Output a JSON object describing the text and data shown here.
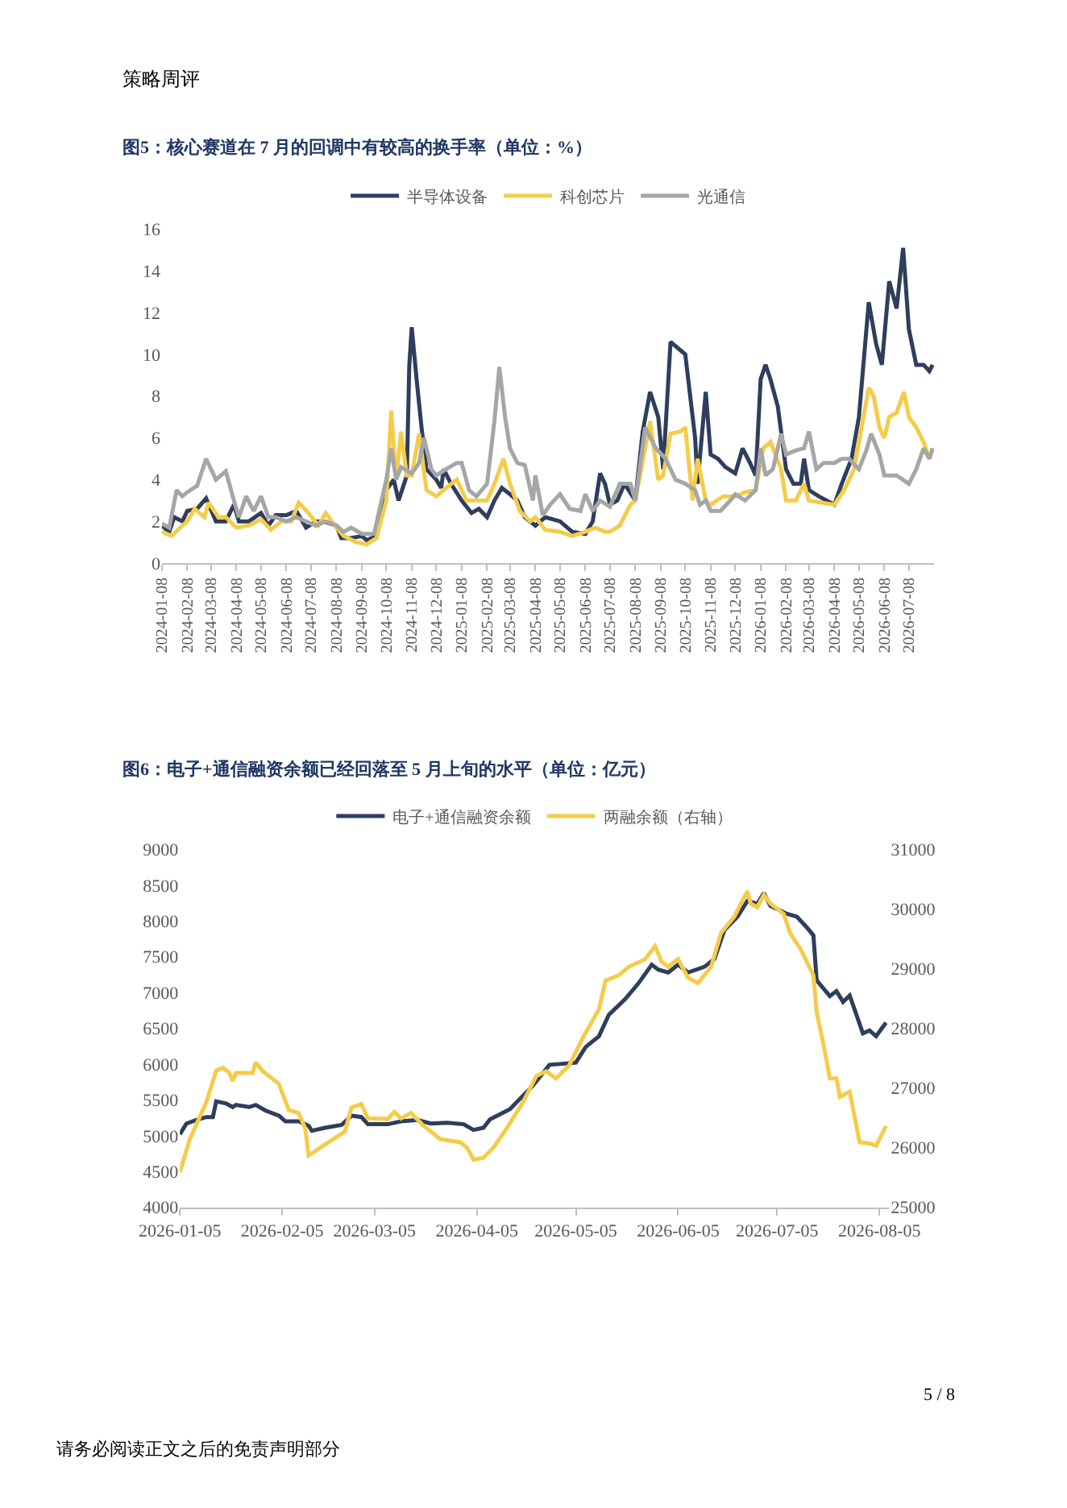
{
  "chart_data": [
    {
      "type": "line",
      "title": "图5：核心赛道在 7 月的回调中有较高的换手率（单位：%）",
      "annotations": [
        "策略周评"
      ],
      "xlim": [
        "2024-01-08",
        "2026-08-08"
      ],
      "xticks": [
        "2024-01-08",
        "2024-02-08",
        "2024-03-08",
        "2024-04-08",
        "2024-05-08",
        "2024-06-08",
        "2024-07-08",
        "2024-08-08",
        "2024-09-08",
        "2024-10-08",
        "2024-11-08",
        "2024-12-08",
        "2025-01-08",
        "2025-02-08",
        "2025-03-08",
        "2025-04-08",
        "2025-05-08",
        "2025-06-08",
        "2025-07-08",
        "2025-08-08",
        "2025-09-08",
        "2025-10-08",
        "2025-11-08",
        "2025-12-08",
        "2026-01-08",
        "2026-02-08",
        "2026-03-08",
        "2026-04-08",
        "2026-05-08",
        "2026-06-08",
        "2026-07-08"
      ],
      "ylim": [
        0,
        16
      ],
      "yticks": [
        0,
        2,
        4,
        6,
        8,
        10,
        12,
        14,
        16
      ],
      "legend": "top",
      "series": [
        {
          "name": "半导体设备",
          "color": "#2e3e5c",
          "x": [
            "2024-01-08",
            "2024-01-17",
            "2024-01-23",
            "2024-02-02",
            "2024-02-08",
            "2024-02-20",
            "2024-03-02",
            "2024-03-14",
            "2024-03-26",
            "2024-04-05",
            "2024-04-11",
            "2024-04-23",
            "2024-05-08",
            "2024-05-17",
            "2024-05-26",
            "2024-06-08",
            "2024-06-20",
            "2024-07-02",
            "2024-07-14",
            "2024-07-23",
            "2024-08-08",
            "2024-08-14",
            "2024-08-26",
            "2024-09-08",
            "2024-09-14",
            "2024-09-26",
            "2024-10-08",
            "2024-10-17",
            "2024-10-23",
            "2024-11-02",
            "2024-11-05",
            "2024-11-08",
            "2024-11-14",
            "2024-11-20",
            "2024-11-26",
            "2024-12-08",
            "2024-12-14",
            "2024-12-17",
            "2024-12-26",
            "2025-01-08",
            "2025-01-20",
            "2025-01-29",
            "2025-02-08",
            "2025-02-17",
            "2025-02-26",
            "2025-03-08",
            "2025-03-17",
            "2025-03-26",
            "2025-04-08",
            "2025-04-20",
            "2025-05-08",
            "2025-05-23",
            "2025-06-08",
            "2025-06-17",
            "2025-06-26",
            "2025-07-02",
            "2025-07-08",
            "2025-07-17",
            "2025-07-26",
            "2025-08-08",
            "2025-08-17",
            "2025-08-26",
            "2025-09-05",
            "2025-09-11",
            "2025-09-20",
            "2025-10-02",
            "2025-10-08",
            "2025-10-20",
            "2025-10-23",
            "2025-11-02",
            "2025-11-08",
            "2025-11-17",
            "2025-11-26",
            "2025-12-08",
            "2025-12-17",
            "2025-12-26",
            "2026-01-02",
            "2026-01-08",
            "2026-01-14",
            "2026-01-20",
            "2026-01-29",
            "2026-02-08",
            "2026-02-17",
            "2026-02-26",
            "2026-03-02",
            "2026-03-08",
            "2026-03-20",
            "2026-04-08",
            "2026-04-17",
            "2026-04-29",
            "2026-05-08",
            "2026-05-20",
            "2026-05-29",
            "2026-06-05",
            "2026-06-14",
            "2026-06-23",
            "2026-07-01",
            "2026-07-08",
            "2026-07-17",
            "2026-07-26",
            "2026-08-02",
            "2026-08-06"
          ],
          "values": [
            1.8,
            1.5,
            2.2,
            2.0,
            2.5,
            2.6,
            3.1,
            2.0,
            2.0,
            2.8,
            2.0,
            2.0,
            2.4,
            1.8,
            2.3,
            2.3,
            2.5,
            1.7,
            2.0,
            2.0,
            1.8,
            1.2,
            1.2,
            1.3,
            1.1,
            1.3,
            3.5,
            4.0,
            3.0,
            4.2,
            9.4,
            11.3,
            8.8,
            6.5,
            4.5,
            4.0,
            3.6,
            4.5,
            3.8,
            3.0,
            2.4,
            2.6,
            2.2,
            3.0,
            3.6,
            3.3,
            3.0,
            2.2,
            1.8,
            2.2,
            2.0,
            1.5,
            1.4,
            2.0,
            4.3,
            3.8,
            2.8,
            3.0,
            3.8,
            3.0,
            6.3,
            8.2,
            7.0,
            4.5,
            10.6,
            10.2,
            10.0,
            6.0,
            3.8,
            8.2,
            5.2,
            5.0,
            4.6,
            4.3,
            5.5,
            4.8,
            4.2,
            8.8,
            9.5,
            8.8,
            7.5,
            4.5,
            3.8,
            3.8,
            5.0,
            3.5,
            3.2,
            2.8,
            3.8,
            5.0,
            7.0,
            12.5,
            10.5,
            9.5,
            13.5,
            12.2,
            15.1,
            11.2,
            9.5,
            9.5,
            9.2,
            9.5
          ]
        },
        {
          "name": "科创芯片",
          "color": "#f5cc4a",
          "x": [
            "2024-01-08",
            "2024-01-20",
            "2024-02-02",
            "2024-02-08",
            "2024-02-17",
            "2024-02-29",
            "2024-03-05",
            "2024-03-17",
            "2024-03-26",
            "2024-04-08",
            "2024-04-23",
            "2024-05-08",
            "2024-05-20",
            "2024-06-02",
            "2024-06-14",
            "2024-06-23",
            "2024-07-05",
            "2024-07-17",
            "2024-07-26",
            "2024-08-08",
            "2024-08-17",
            "2024-09-02",
            "2024-09-14",
            "2024-09-26",
            "2024-10-08",
            "2024-10-14",
            "2024-10-20",
            "2024-10-26",
            "2024-11-02",
            "2024-11-08",
            "2024-11-17",
            "2024-11-26",
            "2024-12-08",
            "2024-12-20",
            "2025-01-02",
            "2025-01-14",
            "2025-01-26",
            "2025-02-08",
            "2025-02-17",
            "2025-02-28",
            "2025-03-08",
            "2025-03-20",
            "2025-04-02",
            "2025-04-08",
            "2025-04-20",
            "2025-05-08",
            "2025-05-23",
            "2025-06-08",
            "2025-06-20",
            "2025-07-02",
            "2025-07-08",
            "2025-07-20",
            "2025-08-02",
            "2025-08-08",
            "2025-08-20",
            "2025-08-26",
            "2025-09-05",
            "2025-09-11",
            "2025-09-20",
            "2025-10-02",
            "2025-10-08",
            "2025-10-17",
            "2025-10-23",
            "2025-11-02",
            "2025-11-08",
            "2025-11-23",
            "2025-12-08",
            "2025-12-20",
            "2026-01-02",
            "2026-01-11",
            "2026-01-20",
            "2026-02-02",
            "2026-02-08",
            "2026-02-20",
            "2026-03-02",
            "2026-03-08",
            "2026-03-23",
            "2026-04-08",
            "2026-04-20",
            "2026-05-02",
            "2026-05-08",
            "2026-05-20",
            "2026-05-26",
            "2026-06-02",
            "2026-06-08",
            "2026-06-14",
            "2026-06-23",
            "2026-07-02",
            "2026-07-08",
            "2026-07-17",
            "2026-07-26",
            "2026-08-02",
            "2026-08-06"
          ],
          "values": [
            1.5,
            1.3,
            1.8,
            2.0,
            2.6,
            2.2,
            2.9,
            2.2,
            2.2,
            1.7,
            1.8,
            2.1,
            1.6,
            2.0,
            2.0,
            2.9,
            2.4,
            1.8,
            2.4,
            1.7,
            1.3,
            1.0,
            0.9,
            1.2,
            3.0,
            7.3,
            4.0,
            6.3,
            4.2,
            4.2,
            6.2,
            3.5,
            3.2,
            3.6,
            4.0,
            3.0,
            3.0,
            3.0,
            3.8,
            5.0,
            3.8,
            2.5,
            2.0,
            2.2,
            1.6,
            1.5,
            1.3,
            1.5,
            1.7,
            1.5,
            1.5,
            1.8,
            2.8,
            3.0,
            5.5,
            6.8,
            4.0,
            4.2,
            6.2,
            6.3,
            6.5,
            3.0,
            5.0,
            3.0,
            2.8,
            3.2,
            3.2,
            3.4,
            3.5,
            5.5,
            5.8,
            4.5,
            3.0,
            3.0,
            3.8,
            3.0,
            2.9,
            2.8,
            3.5,
            4.5,
            5.8,
            8.4,
            8.0,
            6.5,
            6.0,
            7.0,
            7.2,
            8.2,
            7.0,
            6.5,
            5.8,
            5.0,
            5.5
          ]
        },
        {
          "name": "光通信",
          "color": "#a6a6a6",
          "x": [
            "2024-01-08",
            "2024-01-17",
            "2024-01-26",
            "2024-02-02",
            "2024-02-08",
            "2024-02-20",
            "2024-03-02",
            "2024-03-14",
            "2024-03-26",
            "2024-04-05",
            "2024-04-11",
            "2024-04-20",
            "2024-04-29",
            "2024-05-08",
            "2024-05-17",
            "2024-05-26",
            "2024-06-08",
            "2024-06-20",
            "2024-07-02",
            "2024-07-14",
            "2024-07-26",
            "2024-08-08",
            "2024-08-17",
            "2024-08-26",
            "2024-09-08",
            "2024-09-23",
            "2024-10-08",
            "2024-10-14",
            "2024-10-20",
            "2024-10-26",
            "2024-11-08",
            "2024-11-17",
            "2024-11-23",
            "2024-12-02",
            "2024-12-08",
            "2024-12-20",
            "2025-01-02",
            "2025-01-08",
            "2025-01-17",
            "2025-01-26",
            "2025-02-08",
            "2025-02-17",
            "2025-02-23",
            "2025-03-02",
            "2025-03-08",
            "2025-03-17",
            "2025-03-26",
            "2025-04-05",
            "2025-04-08",
            "2025-04-17",
            "2025-04-26",
            "2025-05-08",
            "2025-05-20",
            "2025-06-02",
            "2025-06-08",
            "2025-06-17",
            "2025-06-26",
            "2025-07-08",
            "2025-07-20",
            "2025-08-02",
            "2025-08-08",
            "2025-08-20",
            "2025-09-02",
            "2025-09-14",
            "2025-09-26",
            "2025-10-08",
            "2025-10-20",
            "2025-10-26",
            "2025-11-02",
            "2025-11-08",
            "2025-11-20",
            "2025-12-02",
            "2025-12-08",
            "2025-12-20",
            "2026-01-02",
            "2026-01-08",
            "2026-01-14",
            "2026-01-23",
            "2026-02-02",
            "2026-02-08",
            "2026-02-20",
            "2026-03-02",
            "2026-03-08",
            "2026-03-17",
            "2026-03-26",
            "2026-04-08",
            "2026-04-17",
            "2026-04-26",
            "2026-05-08",
            "2026-05-17",
            "2026-05-23",
            "2026-06-02",
            "2026-06-08",
            "2026-06-23",
            "2026-07-08",
            "2026-07-17",
            "2026-07-26",
            "2026-08-02",
            "2026-08-06"
          ],
          "values": [
            1.9,
            1.7,
            3.5,
            3.2,
            3.4,
            3.7,
            5.0,
            4.0,
            4.4,
            3.0,
            2.2,
            3.2,
            2.5,
            3.2,
            2.2,
            2.2,
            2.0,
            2.2,
            2.0,
            1.8,
            2.0,
            1.8,
            1.5,
            1.7,
            1.4,
            1.4,
            4.0,
            5.5,
            4.0,
            4.6,
            4.3,
            4.8,
            6.0,
            4.5,
            4.2,
            4.5,
            4.8,
            4.8,
            3.5,
            3.2,
            3.8,
            6.8,
            9.4,
            7.0,
            5.5,
            4.8,
            4.7,
            3.0,
            4.2,
            2.3,
            2.8,
            3.3,
            2.6,
            2.5,
            3.3,
            2.5,
            3.0,
            2.7,
            3.8,
            3.8,
            3.0,
            6.5,
            5.5,
            5.0,
            4.0,
            3.8,
            3.5,
            2.8,
            3.0,
            2.5,
            2.5,
            3.0,
            3.3,
            3.0,
            3.5,
            5.5,
            4.2,
            4.5,
            6.2,
            5.2,
            5.4,
            5.5,
            6.3,
            4.5,
            4.8,
            4.8,
            5.0,
            5.0,
            4.5,
            5.4,
            6.2,
            5.2,
            4.2,
            4.2,
            3.8,
            4.5,
            5.5,
            5.0,
            5.5
          ]
        }
      ]
    },
    {
      "type": "line",
      "title": "图6：电子+通信融资余额已经回落至 5 月上旬的水平（单位：亿元）",
      "annotations": [
        "请务必阅读正文之后的免责声明部分",
        "5 / 8"
      ],
      "xlim": [
        "2026-01-05",
        "2026-08-08"
      ],
      "xticks": [
        "2026-01-05",
        "2026-02-05",
        "2026-03-05",
        "2026-04-05",
        "2026-05-05",
        "2026-06-05",
        "2026-07-05",
        "2026-08-05"
      ],
      "ylim": [
        4000,
        9000
      ],
      "yticks": [
        4000,
        4500,
        5000,
        5500,
        6000,
        6500,
        7000,
        7500,
        8000,
        8500,
        9000
      ],
      "y2lim": [
        25000,
        31000
      ],
      "y2ticks": [
        25000,
        26000,
        27000,
        28000,
        29000,
        30000,
        31000
      ],
      "legend": "top",
      "series": [
        {
          "name": "电子+通信融资余额",
          "color": "#2e3e5c",
          "x": [
            "2026-01-05",
            "2026-01-07",
            "2026-01-10",
            "2026-01-13",
            "2026-01-15",
            "2026-01-16",
            "2026-01-19",
            "2026-01-21",
            "2026-01-22",
            "2026-01-26",
            "2026-01-28",
            "2026-01-31",
            "2026-02-04",
            "2026-02-06",
            "2026-02-10",
            "2026-02-13",
            "2026-02-14",
            "2026-02-18",
            "2026-02-23",
            "2026-02-26",
            "2026-03-01",
            "2026-03-03",
            "2026-03-09",
            "2026-03-13",
            "2026-03-18",
            "2026-03-22",
            "2026-03-27",
            "2026-04-01",
            "2026-04-04",
            "2026-04-07",
            "2026-04-09",
            "2026-04-15",
            "2026-04-22",
            "2026-04-27",
            "2026-05-05",
            "2026-05-08",
            "2026-05-12",
            "2026-05-15",
            "2026-05-20",
            "2026-05-24",
            "2026-05-28",
            "2026-05-30",
            "2026-06-02",
            "2026-06-05",
            "2026-06-08",
            "2026-06-13",
            "2026-06-16",
            "2026-06-19",
            "2026-06-23",
            "2026-06-26",
            "2026-06-29",
            "2026-07-01",
            "2026-07-03",
            "2026-07-08",
            "2026-07-11",
            "2026-07-14",
            "2026-07-16",
            "2026-07-17",
            "2026-07-21",
            "2026-07-23",
            "2026-07-25",
            "2026-07-27",
            "2026-07-31",
            "2026-08-02",
            "2026-08-04",
            "2026-08-07"
          ],
          "values": [
            5020,
            5170,
            5220,
            5260,
            5260,
            5480,
            5450,
            5400,
            5430,
            5400,
            5430,
            5350,
            5280,
            5200,
            5200,
            5140,
            5070,
            5110,
            5150,
            5280,
            5260,
            5160,
            5160,
            5200,
            5220,
            5170,
            5180,
            5160,
            5080,
            5110,
            5230,
            5370,
            5700,
            5990,
            6020,
            6240,
            6390,
            6690,
            6910,
            7130,
            7390,
            7320,
            7280,
            7390,
            7280,
            7360,
            7470,
            7870,
            8060,
            8280,
            8240,
            8390,
            8210,
            8100,
            8060,
            7910,
            7800,
            7170,
            6950,
            7020,
            6870,
            6960,
            6430,
            6470,
            6390,
            6580
          ]
        },
        {
          "name": "两融余额（右轴）",
          "color": "#f5cc4a",
          "axis": "y2",
          "x": [
            "2026-01-05",
            "2026-01-08",
            "2026-01-13",
            "2026-01-16",
            "2026-01-18",
            "2026-01-20",
            "2026-01-21",
            "2026-01-22",
            "2026-01-27",
            "2026-01-28",
            "2026-01-30",
            "2026-02-04",
            "2026-02-07",
            "2026-02-10",
            "2026-02-12",
            "2026-02-13",
            "2026-02-24",
            "2026-02-26",
            "2026-03-01",
            "2026-03-03",
            "2026-03-09",
            "2026-03-11",
            "2026-03-13",
            "2026-03-16",
            "2026-03-20",
            "2026-03-25",
            "2026-03-31",
            "2026-04-02",
            "2026-04-04",
            "2026-04-07",
            "2026-04-10",
            "2026-04-14",
            "2026-04-19",
            "2026-04-23",
            "2026-04-26",
            "2026-04-29",
            "2026-05-03",
            "2026-05-07",
            "2026-05-12",
            "2026-05-14",
            "2026-05-18",
            "2026-05-21",
            "2026-05-26",
            "2026-05-29",
            "2026-05-31",
            "2026-06-02",
            "2026-06-05",
            "2026-06-08",
            "2026-06-11",
            "2026-06-15",
            "2026-06-18",
            "2026-06-22",
            "2026-06-24",
            "2026-06-26",
            "2026-06-27",
            "2026-06-29",
            "2026-07-01",
            "2026-07-03",
            "2026-07-07",
            "2026-07-09",
            "2026-07-12",
            "2026-07-16",
            "2026-07-17",
            "2026-07-19",
            "2026-07-21",
            "2026-07-23",
            "2026-07-24",
            "2026-07-27",
            "2026-07-30",
            "2026-08-02",
            "2026-08-04",
            "2026-08-07"
          ],
          "values": [
            25590,
            26140,
            26760,
            27290,
            27340,
            27250,
            27120,
            27250,
            27250,
            27430,
            27290,
            27070,
            26630,
            26580,
            26320,
            25870,
            26270,
            26670,
            26730,
            26490,
            26480,
            26600,
            26490,
            26580,
            26360,
            26140,
            26090,
            26000,
            25800,
            25830,
            26000,
            26320,
            26760,
            27200,
            27280,
            27160,
            27380,
            27830,
            28320,
            28800,
            28890,
            29030,
            29160,
            29380,
            29120,
            29030,
            29160,
            28850,
            28760,
            29030,
            29600,
            29870,
            30090,
            30300,
            30090,
            30030,
            30240,
            30090,
            29920,
            29590,
            29340,
            28890,
            28270,
            27740,
            27160,
            27160,
            26850,
            26940,
            26090,
            26070,
            26030,
            26360
          ]
        }
      ]
    }
  ]
}
